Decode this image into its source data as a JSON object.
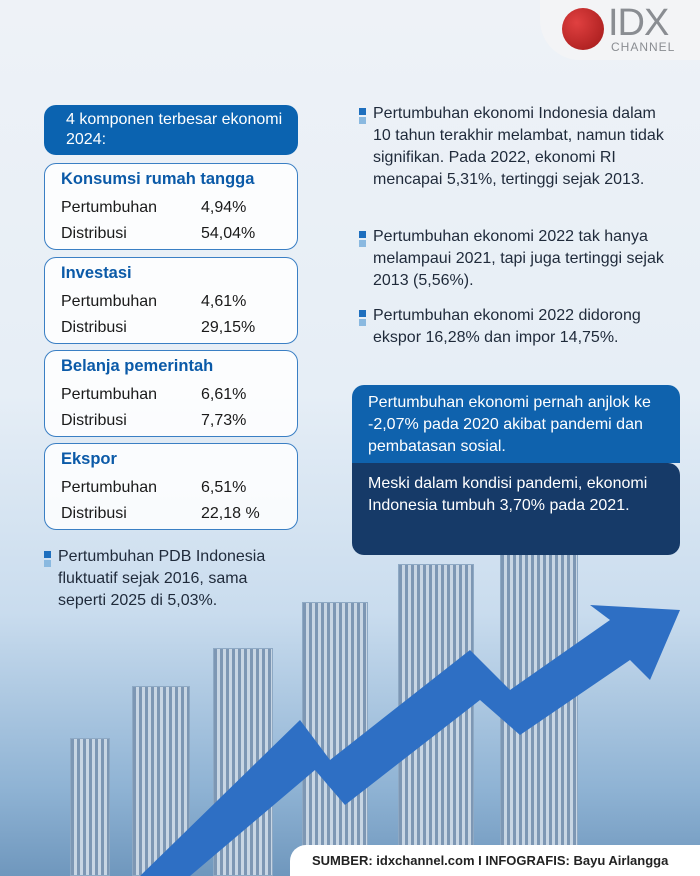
{
  "logo": {
    "brand": "IDX",
    "sub": "CHANNEL"
  },
  "header": "4 komponen terbesar ekonomi 2024:",
  "components": [
    {
      "title": "Konsumsi rumah tangga",
      "growth_label": "Pertumbuhan",
      "growth": "4,94%",
      "dist_label": "Distribusi",
      "dist": "54,04%"
    },
    {
      "title": "Investasi",
      "growth_label": "Pertumbuhan",
      "growth": "4,61%",
      "dist_label": "Distribusi",
      "dist": "29,15%"
    },
    {
      "title": "Belanja pemerintah",
      "growth_label": "Pertumbuhan",
      "growth": "6,61%",
      "dist_label": "Distribusi",
      "dist": "7,73%"
    },
    {
      "title": "Ekspor",
      "growth_label": "Pertumbuhan",
      "growth": "6,51%",
      "dist_label": "Distribusi",
      "dist": "22,18 %"
    }
  ],
  "left_note": "Pertumbuhan PDB Indonesia fluktuatif sejak 2016, sama seperti 2025 di 5,03%.",
  "right_notes": [
    "Pertumbuhan ekonomi Indonesia dalam 10 tahun terakhir melambat, namun tidak signifikan. Pada 2022, ekonomi RI mencapai 5,31%, tertinggi sejak 2013.",
    "Pertumbuhan ekonomi 2022 tak hanya melampaui 2021, tapi juga tertinggi sejak 2013 (5,56%).",
    "Pertumbuhan ekonomi 2022 didorong ekspor 16,28% dan impor 14,75%."
  ],
  "highlight1": "Pertumbuhan ekonomi pernah anjlok ke -2,07% pada 2020 akibat pandemi dan pembatasan sosial.",
  "highlight2": "Meski dalam kondisi pandemi, ekonomi Indonesia tumbuh 3,70% pada 2021.",
  "footer": "SUMBER: idxchannel.com I  INFOGRAFIS: Bayu Airlangga"
}
